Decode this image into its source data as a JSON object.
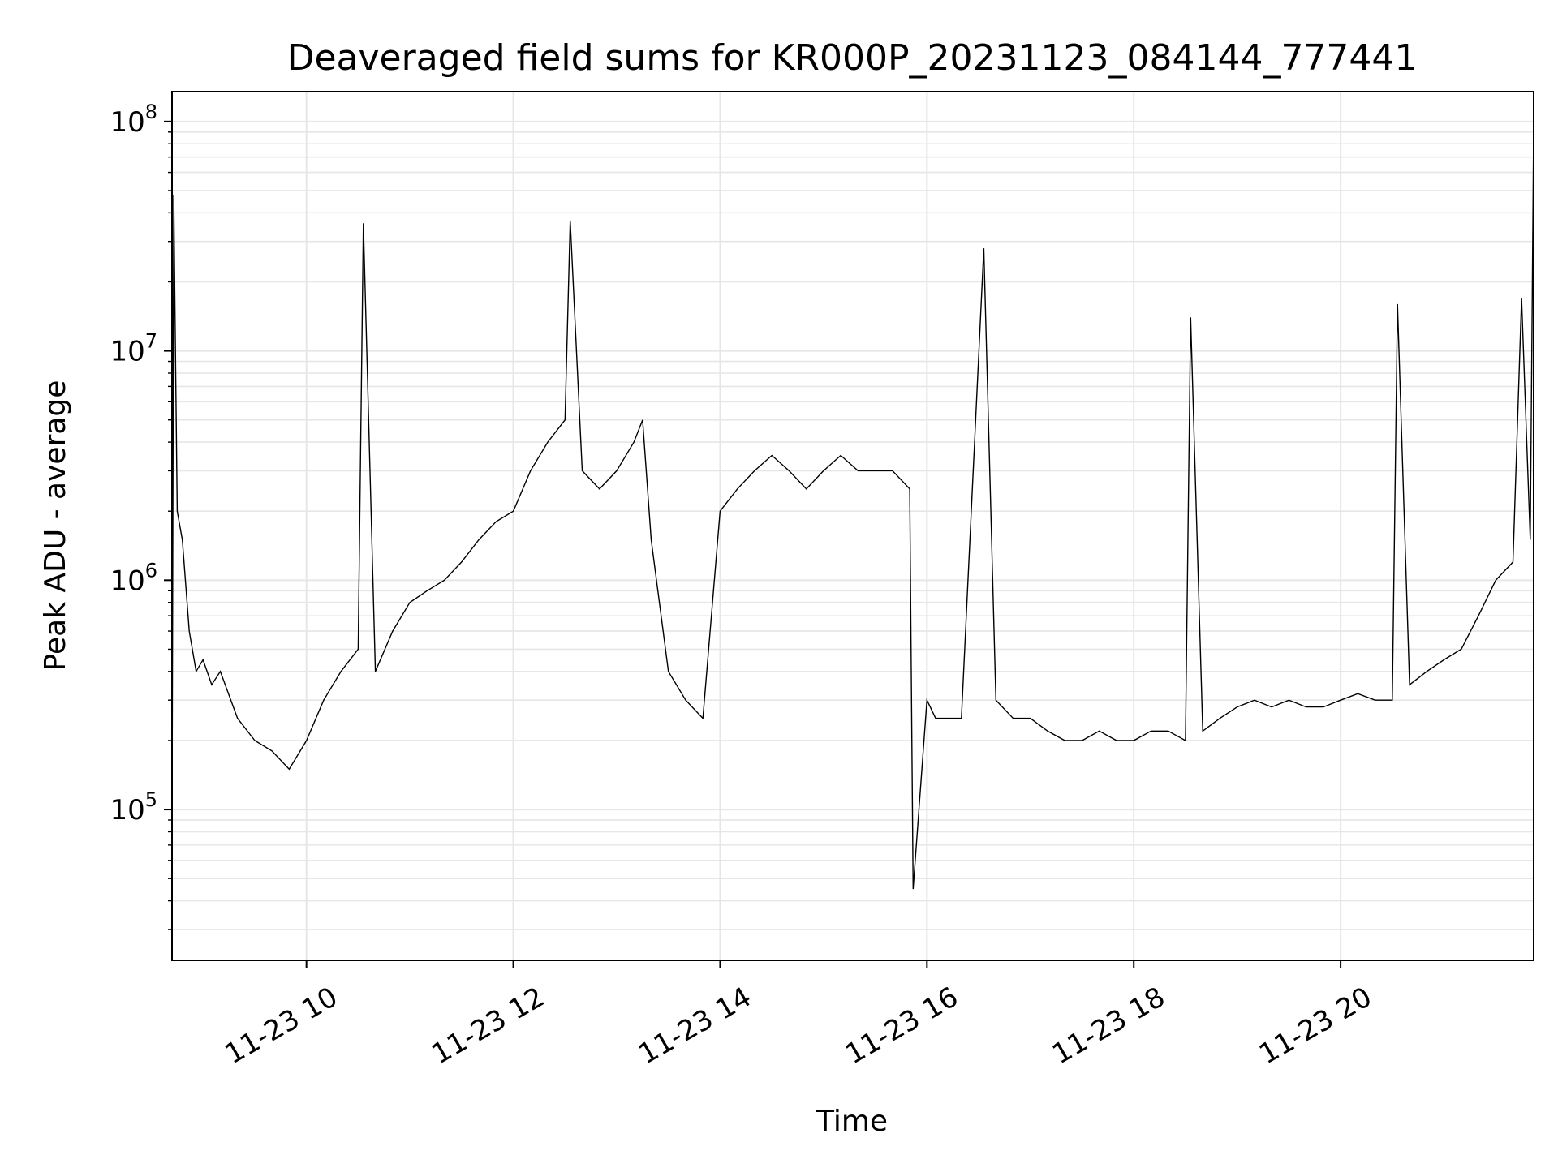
{
  "chart_data": {
    "type": "line",
    "title": "Deaveraged field sums for KR000P_20231123_084144_777441",
    "xlabel": "Time",
    "ylabel": "Peak ADU - average",
    "yscale": "log",
    "ylim": [
      22000,
      135000000
    ],
    "xlim": [
      "2023-11-23 08:42",
      "2023-11-23 21:52"
    ],
    "grid": true,
    "line_color": "#000000",
    "x_ticks": [
      "11-23 10",
      "11-23 12",
      "11-23 14",
      "11-23 16",
      "11-23 18",
      "11-23 20"
    ],
    "y_ticks": [
      {
        "base": "10",
        "exp": "5"
      },
      {
        "base": "10",
        "exp": "6"
      },
      {
        "base": "10",
        "exp": "7"
      },
      {
        "base": "10",
        "exp": "8"
      }
    ],
    "series": [
      {
        "x": [
          "2023-11-23 08:42",
          "2023-11-23 08:43",
          "2023-11-23 08:45",
          "2023-11-23 08:48",
          "2023-11-23 08:52",
          "2023-11-23 08:56",
          "2023-11-23 09:00",
          "2023-11-23 09:05",
          "2023-11-23 09:10",
          "2023-11-23 09:20",
          "2023-11-23 09:30",
          "2023-11-23 09:40",
          "2023-11-23 09:50",
          "2023-11-23 10:00",
          "2023-11-23 10:10",
          "2023-11-23 10:20",
          "2023-11-23 10:30",
          "2023-11-23 10:33",
          "2023-11-23 10:40",
          "2023-11-23 10:50",
          "2023-11-23 11:00",
          "2023-11-23 11:10",
          "2023-11-23 11:20",
          "2023-11-23 11:30",
          "2023-11-23 11:40",
          "2023-11-23 11:50",
          "2023-11-23 12:00",
          "2023-11-23 12:10",
          "2023-11-23 12:20",
          "2023-11-23 12:30",
          "2023-11-23 12:33",
          "2023-11-23 12:40",
          "2023-11-23 12:50",
          "2023-11-23 13:00",
          "2023-11-23 13:10",
          "2023-11-23 13:15",
          "2023-11-23 13:20",
          "2023-11-23 13:30",
          "2023-11-23 13:40",
          "2023-11-23 13:50",
          "2023-11-23 14:00",
          "2023-11-23 14:10",
          "2023-11-23 14:20",
          "2023-11-23 14:30",
          "2023-11-23 14:40",
          "2023-11-23 14:50",
          "2023-11-23 15:00",
          "2023-11-23 15:10",
          "2023-11-23 15:20",
          "2023-11-23 15:30",
          "2023-11-23 15:40",
          "2023-11-23 15:50",
          "2023-11-23 15:52",
          "2023-11-23 16:00",
          "2023-11-23 16:05",
          "2023-11-23 16:10",
          "2023-11-23 16:20",
          "2023-11-23 16:33",
          "2023-11-23 16:40",
          "2023-11-23 16:50",
          "2023-11-23 17:00",
          "2023-11-23 17:10",
          "2023-11-23 17:20",
          "2023-11-23 17:30",
          "2023-11-23 17:40",
          "2023-11-23 17:50",
          "2023-11-23 18:00",
          "2023-11-23 18:10",
          "2023-11-23 18:20",
          "2023-11-23 18:30",
          "2023-11-23 18:33",
          "2023-11-23 18:40",
          "2023-11-23 18:50",
          "2023-11-23 19:00",
          "2023-11-23 19:10",
          "2023-11-23 19:20",
          "2023-11-23 19:30",
          "2023-11-23 19:40",
          "2023-11-23 19:50",
          "2023-11-23 20:00",
          "2023-11-23 20:10",
          "2023-11-23 20:20",
          "2023-11-23 20:30",
          "2023-11-23 20:33",
          "2023-11-23 20:40",
          "2023-11-23 20:50",
          "2023-11-23 21:00",
          "2023-11-23 21:10",
          "2023-11-23 21:20",
          "2023-11-23 21:30",
          "2023-11-23 21:40",
          "2023-11-23 21:45",
          "2023-11-23 21:50",
          "2023-11-23 21:52"
        ],
        "y": [
          80000,
          48000000,
          2000000,
          1500000,
          600000,
          400000,
          450000,
          350000,
          400000,
          250000,
          200000,
          180000,
          150000,
          200000,
          300000,
          400000,
          500000,
          36000000,
          400000,
          600000,
          800000,
          900000,
          1000000,
          1200000,
          1500000,
          1800000,
          2000000,
          3000000,
          4000000,
          5000000,
          37000000,
          3000000,
          2500000,
          3000000,
          4000000,
          5000000,
          1500000,
          400000,
          300000,
          250000,
          2000000,
          2500000,
          3000000,
          3500000,
          3000000,
          2500000,
          3000000,
          3500000,
          3000000,
          3000000,
          3000000,
          2500000,
          45000,
          300000,
          250000,
          250000,
          250000,
          28000000,
          300000,
          250000,
          250000,
          220000,
          200000,
          200000,
          220000,
          200000,
          200000,
          220000,
          220000,
          200000,
          14000000,
          220000,
          250000,
          280000,
          300000,
          280000,
          300000,
          280000,
          280000,
          300000,
          320000,
          300000,
          300000,
          16000000,
          350000,
          400000,
          450000,
          500000,
          700000,
          1000000,
          1200000,
          17000000,
          1500000,
          95000000
        ]
      }
    ]
  }
}
